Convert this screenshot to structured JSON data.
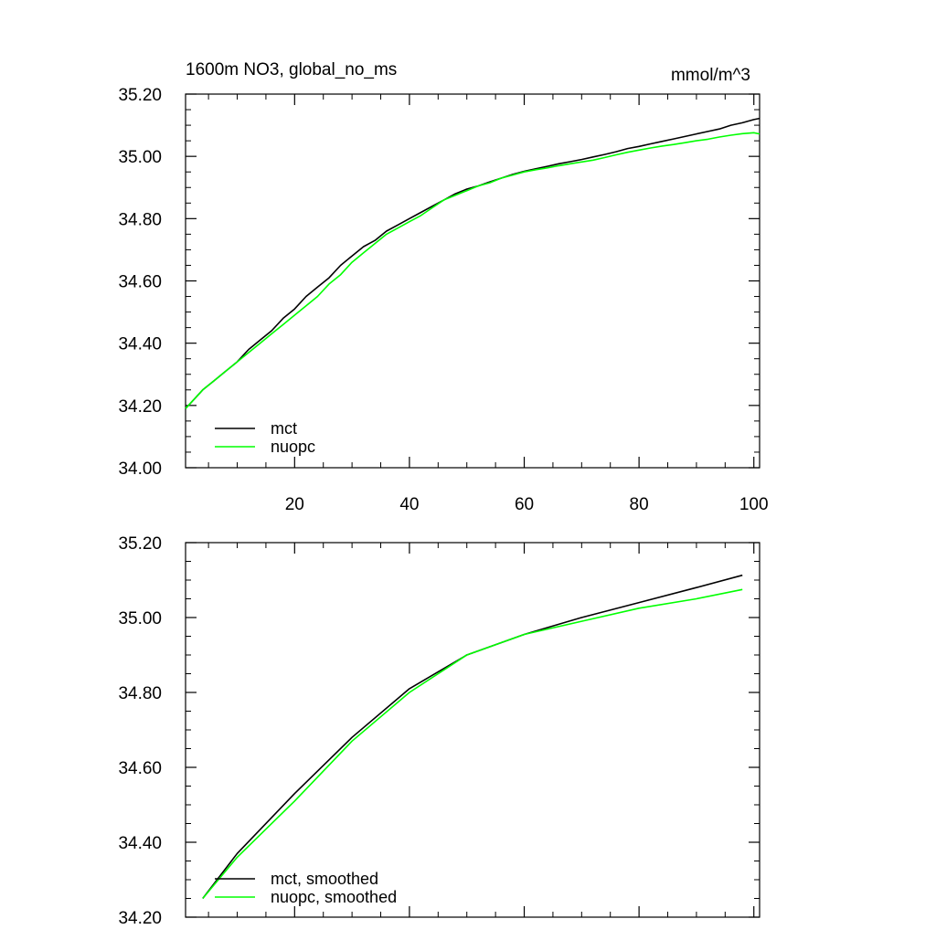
{
  "colors": {
    "series_mct": "#000000",
    "series_nuopc": "#00ff00",
    "axis": "#000000",
    "background": "#ffffff"
  },
  "chart_data": [
    {
      "type": "line",
      "title_left": "1600m NO3, global_no_ms",
      "title_right": "mmol/m^3",
      "xlim": [
        1,
        101
      ],
      "ylim": [
        34.0,
        35.2
      ],
      "x_ticks": [
        20,
        40,
        60,
        80,
        100
      ],
      "x_tick_labels": [
        "20",
        "40",
        "60",
        "80",
        "100"
      ],
      "y_ticks": [
        34.0,
        34.2,
        34.4,
        34.6,
        34.8,
        35.0,
        35.2
      ],
      "y_tick_labels": [
        "34.00",
        "34.20",
        "34.40",
        "34.60",
        "34.80",
        "35.00",
        "35.20"
      ],
      "legend_position": "bottom-left",
      "series": [
        {
          "name": "mct",
          "color": "#000000",
          "x": [
            1,
            2,
            4,
            6,
            8,
            10,
            12,
            14,
            16,
            18,
            20,
            22,
            24,
            26,
            28,
            30,
            32,
            34,
            36,
            38,
            40,
            42,
            44,
            46,
            48,
            50,
            52,
            54,
            56,
            58,
            60,
            62,
            64,
            66,
            68,
            70,
            72,
            74,
            76,
            78,
            80,
            82,
            84,
            86,
            88,
            90,
            92,
            94,
            96,
            98,
            100,
            101
          ],
          "y": [
            34.19,
            34.21,
            34.25,
            34.28,
            34.31,
            34.34,
            34.38,
            34.41,
            34.44,
            34.48,
            34.51,
            34.55,
            34.58,
            34.61,
            34.65,
            34.68,
            34.71,
            34.73,
            34.76,
            34.78,
            34.8,
            34.82,
            34.84,
            34.86,
            34.88,
            34.895,
            34.905,
            34.918,
            34.93,
            34.942,
            34.952,
            34.96,
            34.968,
            34.976,
            34.983,
            34.99,
            34.998,
            35.006,
            35.015,
            35.025,
            35.032,
            35.04,
            35.048,
            35.056,
            35.064,
            35.072,
            35.08,
            35.088,
            35.1,
            35.108,
            35.118,
            35.122
          ]
        },
        {
          "name": "nuopc",
          "color": "#00ff00",
          "x": [
            1,
            2,
            4,
            6,
            8,
            10,
            12,
            14,
            16,
            18,
            20,
            22,
            24,
            26,
            28,
            30,
            32,
            34,
            36,
            38,
            40,
            42,
            44,
            46,
            48,
            50,
            52,
            54,
            56,
            58,
            60,
            62,
            64,
            66,
            68,
            70,
            72,
            74,
            76,
            78,
            80,
            82,
            84,
            86,
            88,
            90,
            92,
            94,
            96,
            98,
            100,
            101
          ],
          "y": [
            34.19,
            34.21,
            34.25,
            34.28,
            34.31,
            34.34,
            34.37,
            34.4,
            34.43,
            34.46,
            34.49,
            34.52,
            34.55,
            34.59,
            34.62,
            34.66,
            34.69,
            34.72,
            34.75,
            34.77,
            34.79,
            34.81,
            34.835,
            34.86,
            34.875,
            34.89,
            34.905,
            34.915,
            34.93,
            34.94,
            34.95,
            34.957,
            34.963,
            34.97,
            34.976,
            34.982,
            34.988,
            34.996,
            35.005,
            35.013,
            35.02,
            35.027,
            35.033,
            35.038,
            35.044,
            35.05,
            35.055,
            35.062,
            35.068,
            35.073,
            35.076,
            35.072
          ]
        }
      ]
    },
    {
      "type": "line",
      "xlim": [
        1,
        101
      ],
      "ylim": [
        34.2,
        35.2
      ],
      "x_ticks": [
        20,
        40,
        60,
        80,
        100
      ],
      "y_ticks": [
        34.2,
        34.4,
        34.6,
        34.8,
        35.0,
        35.2
      ],
      "y_tick_labels": [
        "34.20",
        "34.40",
        "34.60",
        "34.80",
        "35.00",
        "35.20"
      ],
      "legend_position": "bottom-left",
      "series": [
        {
          "name": "mct, smoothed",
          "color": "#000000",
          "x": [
            4,
            10,
            20,
            30,
            40,
            50,
            60,
            70,
            80,
            90,
            98
          ],
          "y": [
            34.25,
            34.37,
            34.53,
            34.68,
            34.81,
            34.9,
            34.955,
            35.0,
            35.04,
            35.08,
            35.113
          ]
        },
        {
          "name": "nuopc, smoothed",
          "color": "#00ff00",
          "x": [
            4,
            10,
            20,
            30,
            40,
            50,
            60,
            70,
            80,
            90,
            98
          ],
          "y": [
            34.25,
            34.36,
            34.51,
            34.67,
            34.8,
            34.9,
            34.955,
            34.99,
            35.025,
            35.05,
            35.075
          ]
        }
      ]
    }
  ]
}
